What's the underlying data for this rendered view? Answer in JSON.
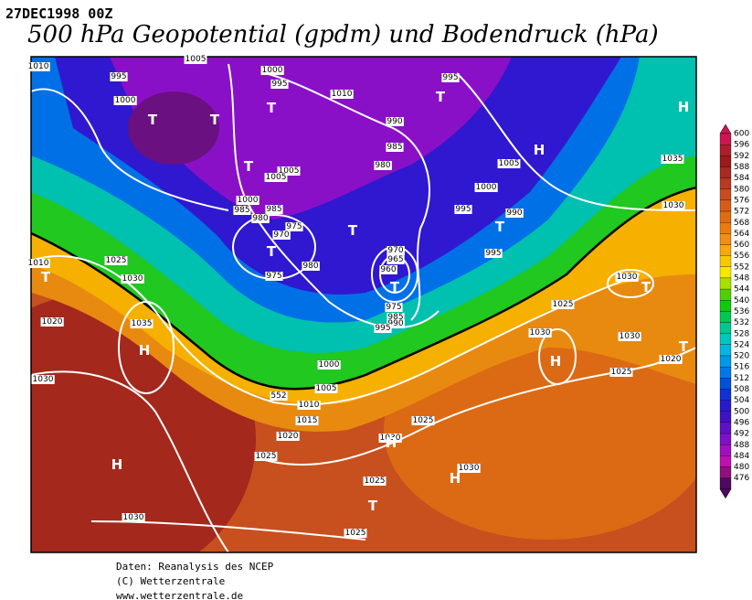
{
  "header": {
    "date": "27DEC1998 00Z",
    "title": "500 hPa Geopotential (gpdm) und Bodendruck (hPa)"
  },
  "colorbar": {
    "labels": [
      600,
      596,
      592,
      588,
      584,
      580,
      576,
      572,
      568,
      564,
      560,
      556,
      552,
      548,
      544,
      540,
      536,
      532,
      528,
      524,
      520,
      516,
      512,
      508,
      504,
      500,
      496,
      492,
      488,
      484,
      480,
      476
    ],
    "colors": [
      "#cc1450",
      "#b01c2c",
      "#9c1a1a",
      "#a82a20",
      "#b83a20",
      "#c84c20",
      "#d85c18",
      "#e06c10",
      "#e87c10",
      "#f09010",
      "#f8a808",
      "#f8c800",
      "#f8e800",
      "#a8e000",
      "#50d000",
      "#10c810",
      "#00c850",
      "#00c890",
      "#00c8c0",
      "#00b8e0",
      "#0098e8",
      "#0078e8",
      "#0050e0",
      "#1030d8",
      "#2818d0",
      "#4010c8",
      "#6010c8",
      "#8010c8",
      "#a010c0",
      "#c010b0",
      "#901080",
      "#500860"
    ]
  },
  "pressure_labels": [
    "1010",
    "995",
    "1000",
    "1005",
    "1000",
    "995",
    "1010",
    "995",
    "990",
    "985",
    "980",
    "1005",
    "1005",
    "1005",
    "1000",
    "1000",
    "985",
    "985",
    "980",
    "975",
    "970",
    "990",
    "995",
    "995",
    "970",
    "965",
    "960",
    "975",
    "980",
    "975",
    "985",
    "990",
    "995",
    "1025",
    "1030",
    "1010",
    "1020",
    "1035",
    "1030",
    "1000",
    "1005",
    "1010",
    "1015",
    "1020",
    "1025",
    "1025",
    "1030",
    "1030",
    "1025",
    "1025",
    "1030",
    "1025",
    "1030",
    "1030",
    "1030",
    "1025",
    "1020",
    "1030",
    "1035",
    "552"
  ],
  "centers": [
    "T",
    "T",
    "T",
    "T",
    "T",
    "T",
    "T",
    "T",
    "T",
    "T",
    "T",
    "T",
    "T",
    "H",
    "H",
    "H",
    "H",
    "H",
    "H",
    "H"
  ],
  "footer": {
    "lines": [
      "Daten: Reanalysis des NCEP",
      "(C) Wetterzentrale",
      "www.wetterzentrale.de"
    ]
  }
}
